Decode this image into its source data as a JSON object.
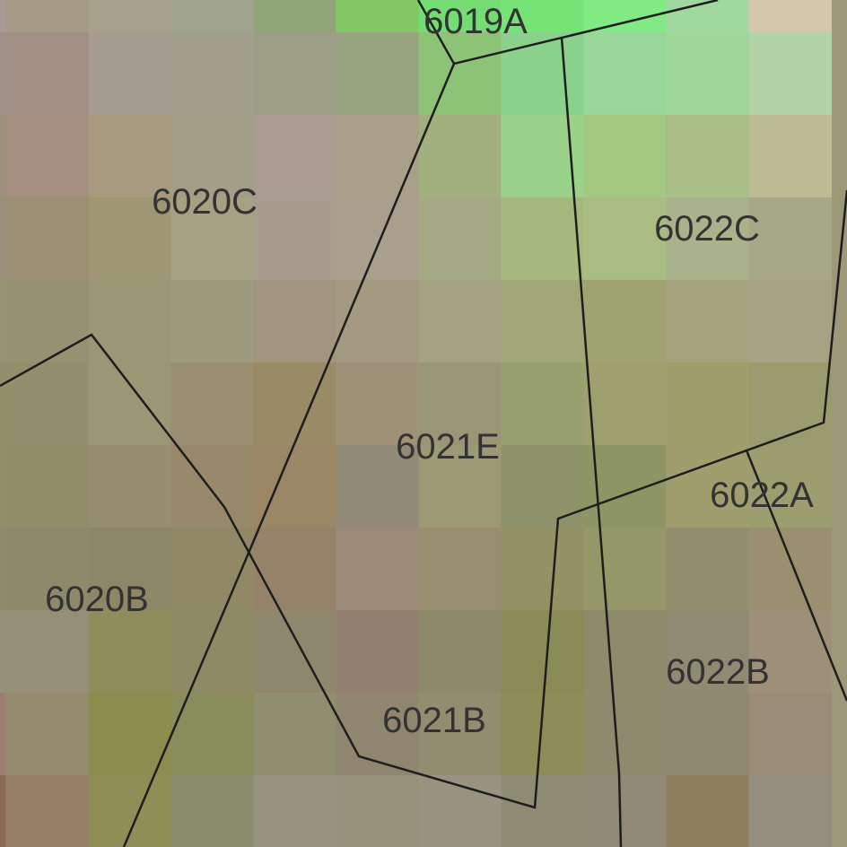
{
  "map": {
    "boundary_color": "#1e1e1e",
    "label_color": "#333333",
    "cell_colors": [
      [
        "#a69c96",
        "#a59a84",
        "#a6a08d",
        "#a1a48e",
        "#90a679",
        "#82c862",
        "#73dc73",
        "#76e376",
        "#82ea82",
        "#a0d9a0",
        "#d4c8a9"
      ],
      [
        "#9e9088",
        "#a18f85",
        "#a79c92",
        "#a2a08d",
        "#9d9e86",
        "#98a37f",
        "#8dc377",
        "#8bd18e",
        "#98d79a",
        "#a0d79b",
        "#b5d3a8"
      ],
      [
        "#9f8f7d",
        "#a58e80",
        "#a79a7e",
        "#a59e86",
        "#aa9c93",
        "#aa9f88",
        "#a1b07e",
        "#9bd289",
        "#a2c882",
        "#aabe88",
        "#bebc94"
      ],
      [
        "#9a9079",
        "#9b8f74",
        "#9f9674",
        "#a5a182",
        "#a89c8e",
        "#a99f8c",
        "#a5aa85",
        "#a5b97d",
        "#a9bd82",
        "#a9b28a",
        "#a6a886"
      ],
      [
        "#96936f",
        "#969170",
        "#9b9775",
        "#9e9b7f",
        "#a1957f",
        "#a49981",
        "#a4a282",
        "#a2a778",
        "#9ea36f",
        "#a5a37e",
        "#a6a385"
      ],
      [
        "#928f6a",
        "#938e6b",
        "#9a9775",
        "#998e72",
        "#9a8b67",
        "#9e9177",
        "#999678",
        "#98a06f",
        "#9ea16f",
        "#9da06a",
        "#9a9b6f"
      ],
      [
        "#8f8f69",
        "#8f8e69",
        "#978e6f",
        "#978969",
        "#9b8765",
        "#928a77",
        "#9b9a75",
        "#8f936c",
        "#8d9565",
        "#a19e6e",
        "#9d9e6f"
      ],
      [
        "#8d8b6d",
        "#8d8a6b",
        "#8c8767",
        "#918866",
        "#968268",
        "#9c8b79",
        "#988f6e",
        "#929265",
        "#949768",
        "#918f6d",
        "#9a8f6e"
      ],
      [
        "#968f7b",
        "#958f79",
        "#8d8e5a",
        "#8f8a66",
        "#8e866d",
        "#948070",
        "#8d8a6a",
        "#8a8c57",
        "#8d8b6b",
        "#8f8b73",
        "#9e8f79"
      ],
      [
        "#9c7f70",
        "#958b6f",
        "#8c8c4e",
        "#898c5b",
        "#8f8e6e",
        "#90856f",
        "#928d70",
        "#8d8e57",
        "#8e8a6d",
        "#908970",
        "#9a8c77"
      ],
      [
        "#8c6854",
        "#987f68",
        "#908e57",
        "#8b8c6e",
        "#969480",
        "#97907a",
        "#98927f",
        "#8e8c74",
        "#928a78",
        "#8e7e5d",
        "#928e80"
      ]
    ],
    "parcels": [
      {
        "id": "6019A",
        "label": "6019A"
      },
      {
        "id": "6020C",
        "label": "6020C"
      },
      {
        "id": "6022C",
        "label": "6022C"
      },
      {
        "id": "6021E",
        "label": "6021E"
      },
      {
        "id": "6022A",
        "label": "6022A"
      },
      {
        "id": "6020B",
        "label": "6020B"
      },
      {
        "id": "6022B",
        "label": "6022B"
      },
      {
        "id": "6021B",
        "label": "6021B"
      }
    ]
  }
}
